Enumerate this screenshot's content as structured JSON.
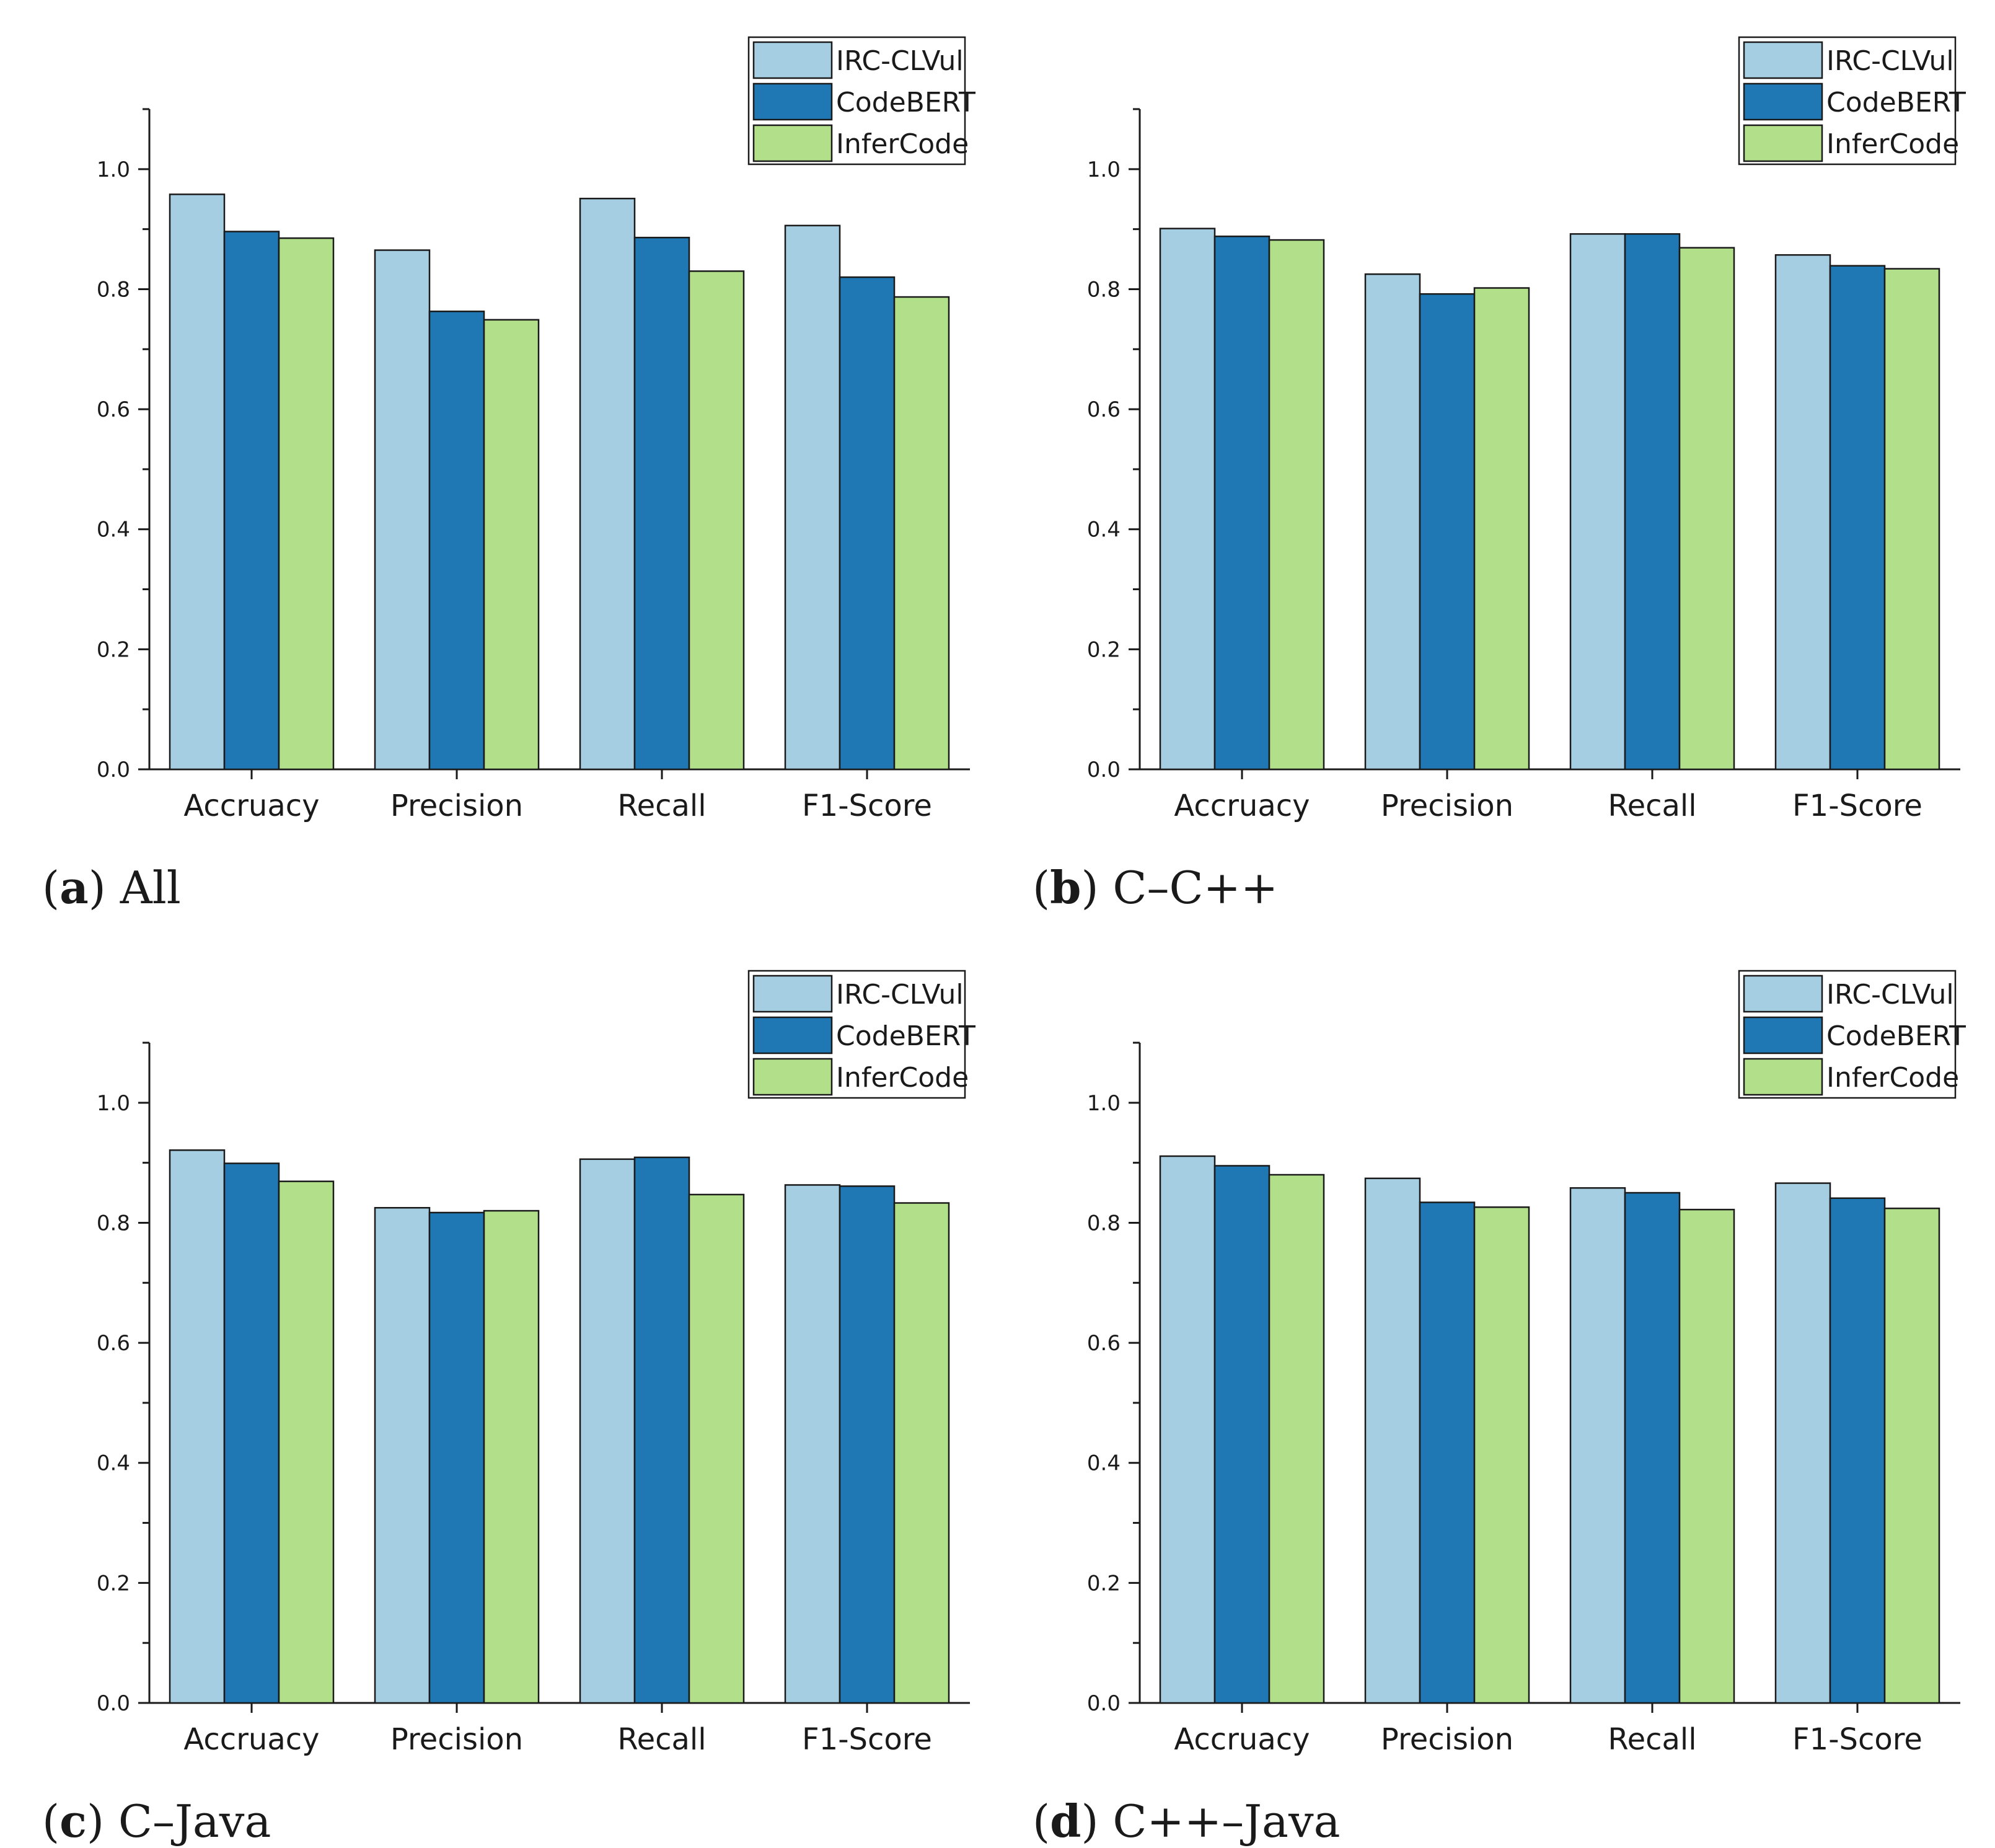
{
  "colors": {
    "IRC-CLVul": "#a6cee3",
    "CodeBERT": "#1f78b4",
    "InferCode": "#b2df8a",
    "axis": "#1a1a1a"
  },
  "chart_data": [
    {
      "type": "bar",
      "panel_letter": "a",
      "panel_title": "All",
      "categories": [
        "Accruacy",
        "Precision",
        "Recall",
        "F1-Score"
      ],
      "series": [
        {
          "name": "IRC-CLVul",
          "values": [
            0.958,
            0.865,
            0.951,
            0.906
          ]
        },
        {
          "name": "CodeBERT",
          "values": [
            0.896,
            0.763,
            0.886,
            0.82
          ]
        },
        {
          "name": "InferCode",
          "values": [
            0.885,
            0.749,
            0.83,
            0.787
          ]
        }
      ],
      "ylim": [
        0,
        1.1
      ],
      "yticks": [
        "0.0",
        "0.2",
        "0.4",
        "0.6",
        "0.8",
        "1.0"
      ],
      "legend": "top-right"
    },
    {
      "type": "bar",
      "panel_letter": "b",
      "panel_title": "C–C++",
      "categories": [
        "Accruacy",
        "Precision",
        "Recall",
        "F1-Score"
      ],
      "series": [
        {
          "name": "IRC-CLVul",
          "values": [
            0.901,
            0.825,
            0.892,
            0.857
          ]
        },
        {
          "name": "CodeBERT",
          "values": [
            0.888,
            0.792,
            0.892,
            0.839
          ]
        },
        {
          "name": "InferCode",
          "values": [
            0.882,
            0.802,
            0.869,
            0.834
          ]
        }
      ],
      "ylim": [
        0,
        1.1
      ],
      "yticks": [
        "0.0",
        "0.2",
        "0.4",
        "0.6",
        "0.8",
        "1.0"
      ],
      "legend": "top-right"
    },
    {
      "type": "bar",
      "panel_letter": "c",
      "panel_title": "C–Java",
      "categories": [
        "Accruacy",
        "Precision",
        "Recall",
        "F1-Score"
      ],
      "series": [
        {
          "name": "IRC-CLVul",
          "values": [
            0.921,
            0.825,
            0.906,
            0.863
          ]
        },
        {
          "name": "CodeBERT",
          "values": [
            0.899,
            0.817,
            0.909,
            0.861
          ]
        },
        {
          "name": "InferCode",
          "values": [
            0.869,
            0.82,
            0.847,
            0.833
          ]
        }
      ],
      "ylim": [
        0,
        1.1
      ],
      "yticks": [
        "0.0",
        "0.2",
        "0.4",
        "0.6",
        "0.8",
        "1.0"
      ],
      "legend": "top-right"
    },
    {
      "type": "bar",
      "panel_letter": "d",
      "panel_title": "C++–Java",
      "categories": [
        "Accruacy",
        "Precision",
        "Recall",
        "F1-Score"
      ],
      "series": [
        {
          "name": "IRC-CLVul",
          "values": [
            0.911,
            0.874,
            0.858,
            0.866
          ]
        },
        {
          "name": "CodeBERT",
          "values": [
            0.895,
            0.834,
            0.85,
            0.841
          ]
        },
        {
          "name": "InferCode",
          "values": [
            0.88,
            0.826,
            0.822,
            0.824
          ]
        }
      ],
      "ylim": [
        0,
        1.1
      ],
      "yticks": [
        "0.0",
        "0.2",
        "0.4",
        "0.6",
        "0.8",
        "1.0"
      ],
      "legend": "top-right"
    }
  ]
}
